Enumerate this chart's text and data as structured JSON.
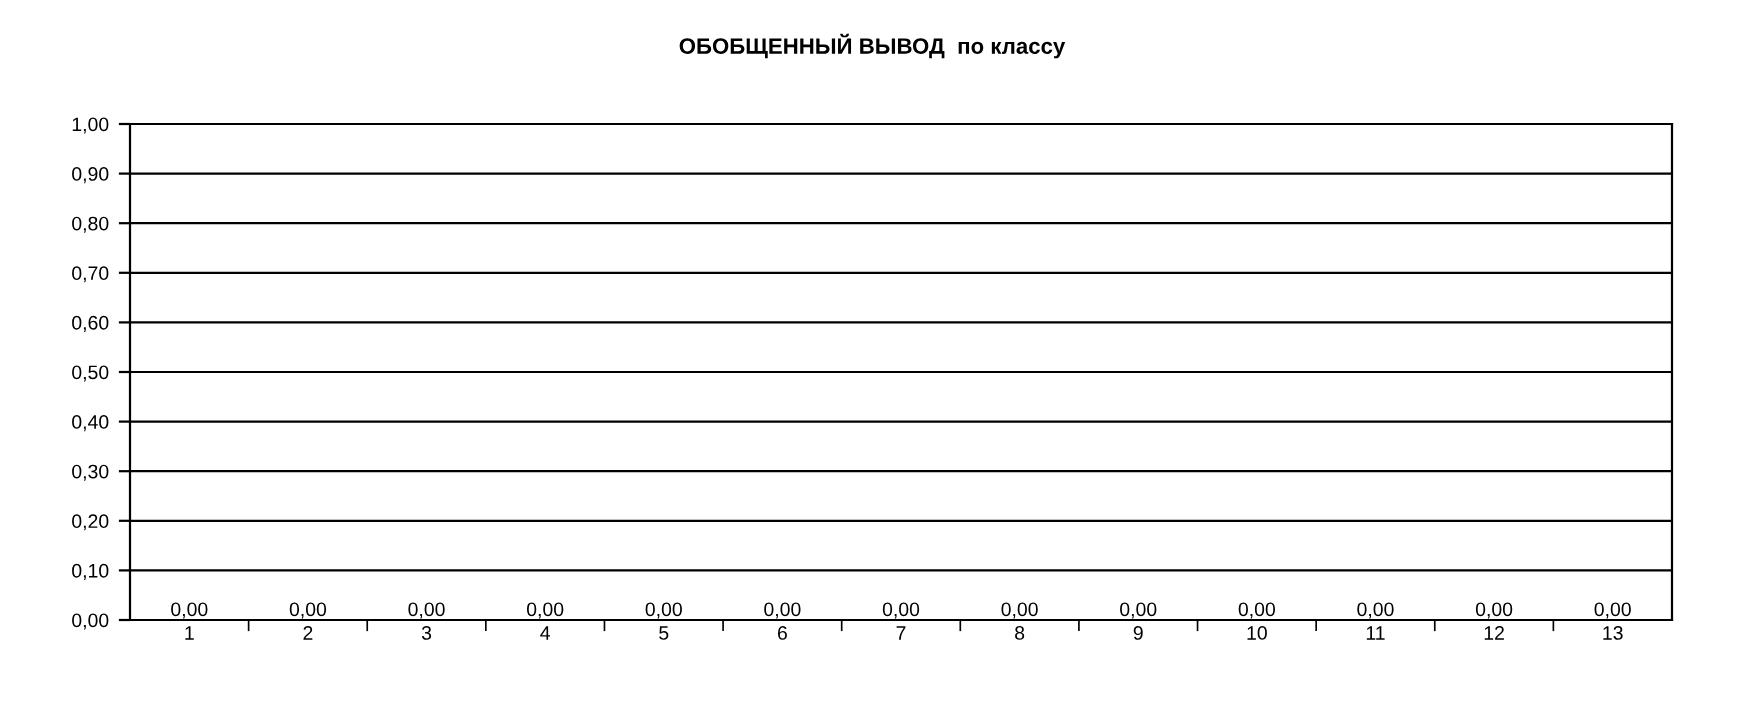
{
  "chart_data": {
    "type": "bar",
    "title": "ОБОБЩЕННЫЙ ВЫВОД  по классу",
    "categories": [
      "1",
      "2",
      "3",
      "4",
      "5",
      "6",
      "7",
      "8",
      "9",
      "10",
      "11",
      "12",
      "13"
    ],
    "values": [
      0,
      0,
      0,
      0,
      0,
      0,
      0,
      0,
      0,
      0,
      0,
      0,
      0
    ],
    "value_labels": [
      "0,00",
      "0,00",
      "0,00",
      "0,00",
      "0,00",
      "0,00",
      "0,00",
      "0,00",
      "0,00",
      "0,00",
      "0,00",
      "0,00",
      "0,00"
    ],
    "ylim": [
      0,
      1
    ],
    "yticks": [
      {
        "value": 0,
        "label": "0,00"
      },
      {
        "value": 0.1,
        "label": "0,10"
      },
      {
        "value": 0.2,
        "label": "0,20"
      },
      {
        "value": 0.3,
        "label": "0,30"
      },
      {
        "value": 0.4,
        "label": "0,40"
      },
      {
        "value": 0.5,
        "label": "0,50"
      },
      {
        "value": 0.6,
        "label": "0,60"
      },
      {
        "value": 0.7,
        "label": "0,70"
      },
      {
        "value": 0.8,
        "label": "0,80"
      },
      {
        "value": 0.9,
        "label": "0,90"
      },
      {
        "value": 1,
        "label": "1,00"
      }
    ],
    "grid": "y",
    "legend": false
  }
}
